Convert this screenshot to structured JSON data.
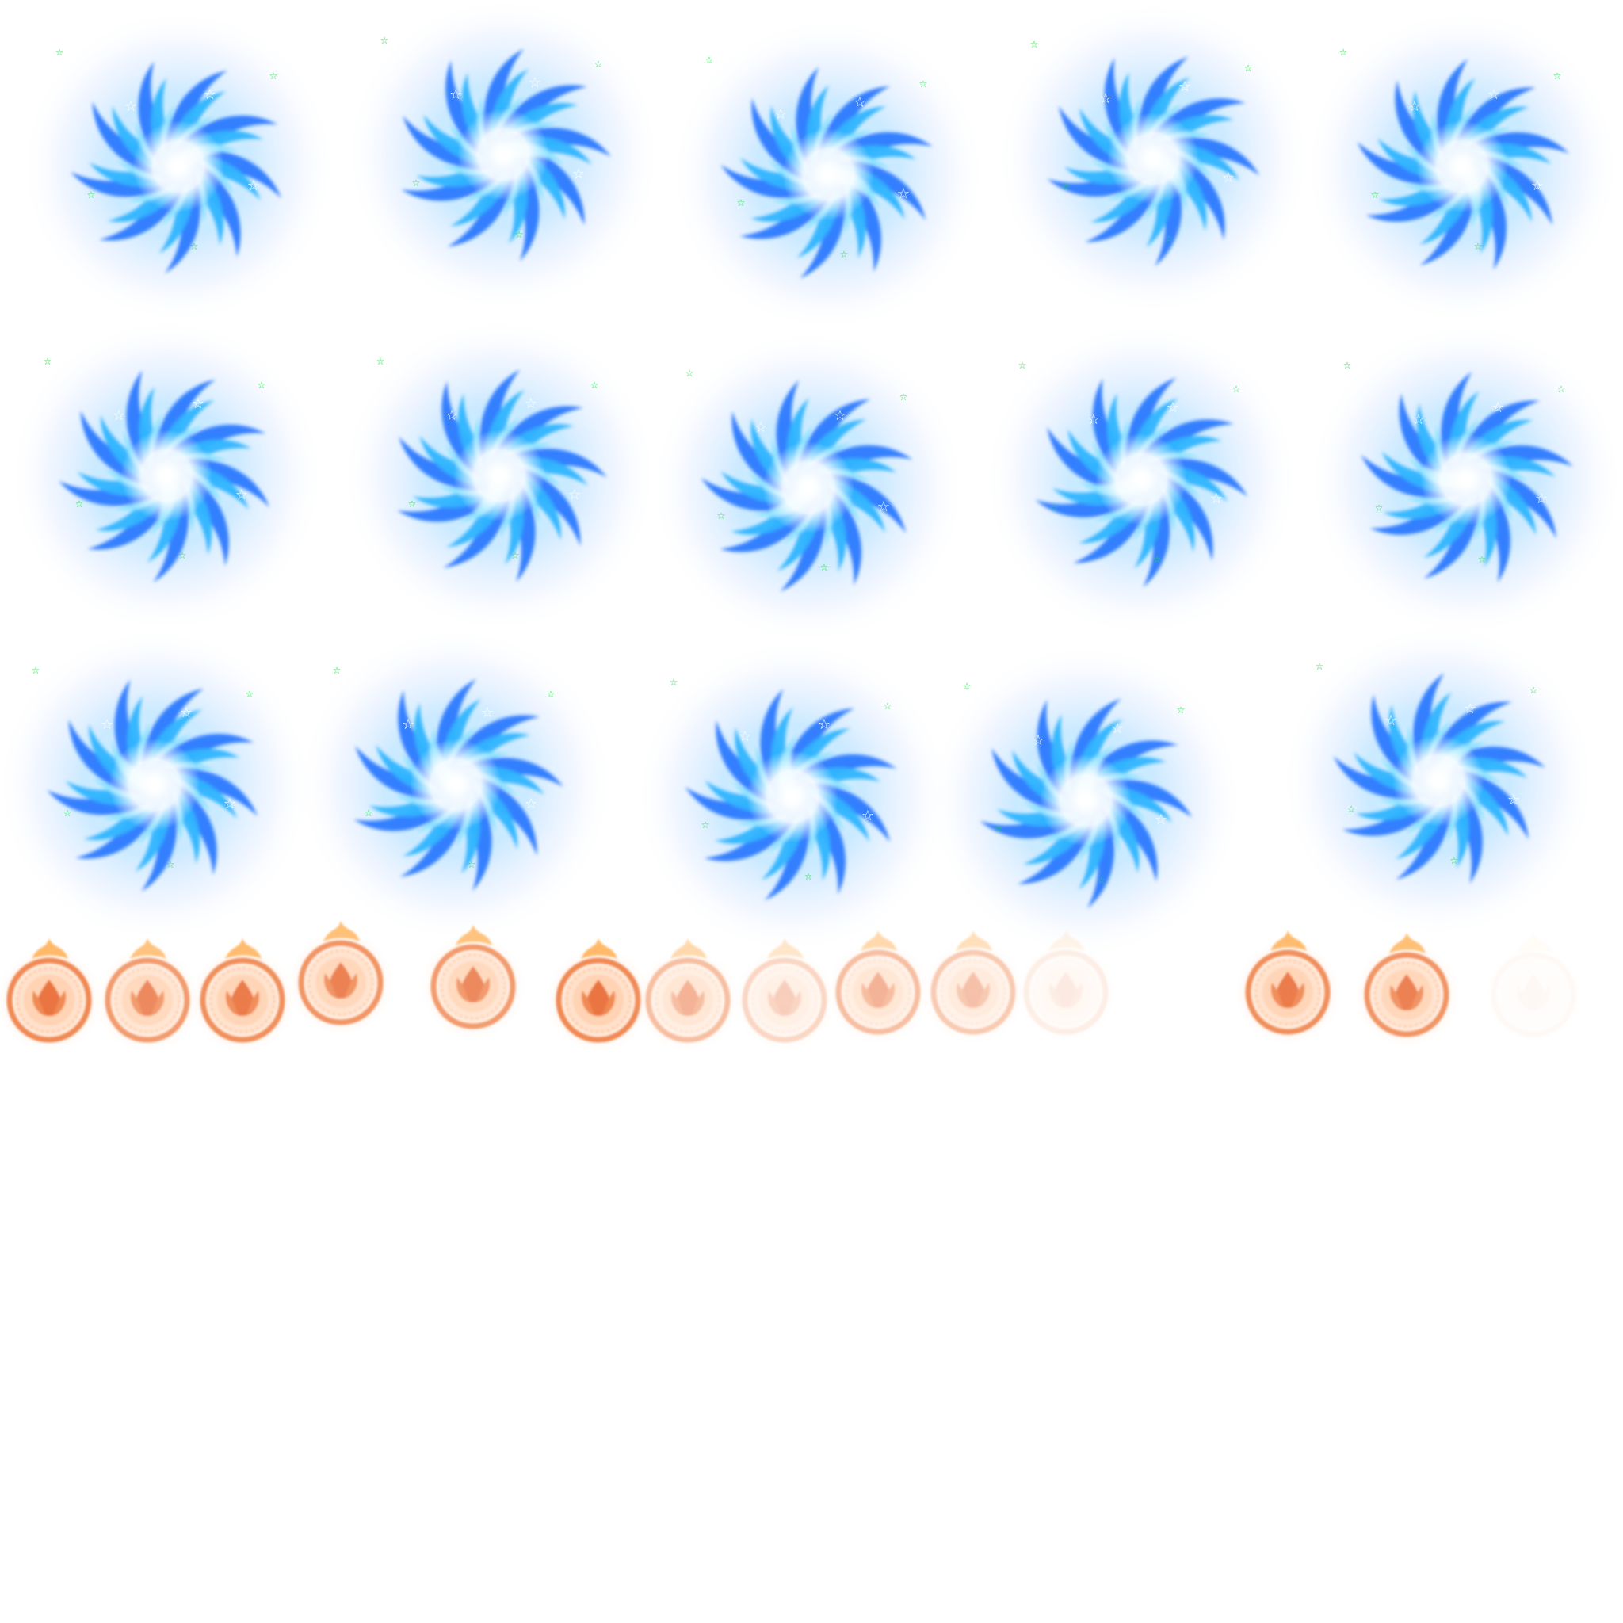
{
  "sprite_sheet": {
    "background": "#ffffff",
    "vortex": {
      "icon": "blue-swirl-vortex-icon",
      "colors": {
        "core": "#ffffff",
        "inner": "#8fe4ff",
        "mid": "#2fb4ff",
        "outer": "#1a6cff",
        "halo": "#7aa8ff",
        "star": "#22dd44"
      },
      "frames": [
        {
          "rot": 0,
          "opacity": 1
        },
        {
          "rot": 24,
          "opacity": 1
        },
        {
          "rot": 48,
          "opacity": 1
        },
        {
          "rot": 72,
          "opacity": 1
        },
        {
          "rot": 96,
          "opacity": 1
        },
        {
          "rot": 120,
          "opacity": 1
        },
        {
          "rot": 144,
          "opacity": 1
        },
        {
          "rot": 168,
          "opacity": 1
        },
        {
          "rot": 192,
          "opacity": 1
        },
        {
          "rot": 216,
          "opacity": 1
        },
        {
          "rot": 240,
          "opacity": 1
        },
        {
          "rot": 264,
          "opacity": 1
        },
        {
          "rot": 288,
          "opacity": 1
        },
        {
          "rot": 312,
          "opacity": 1
        },
        {
          "rot": 336,
          "opacity": 1
        }
      ]
    },
    "seal": {
      "icon": "orange-flame-seal-icon",
      "colors": {
        "ring": "#f08a55",
        "glow": "#ffc9a3",
        "core": "#e86a35",
        "flame": "#ffb15a"
      },
      "frames": [
        {
          "opacity": 1
        },
        {
          "opacity": 0.85
        },
        {
          "opacity": 0.95
        },
        {
          "opacity": 0.9
        },
        {
          "opacity": 0.85
        },
        {
          "opacity": 1
        },
        {
          "opacity": 0.55
        },
        {
          "opacity": 0.35
        },
        {
          "opacity": 0.55
        },
        {
          "opacity": 0.45
        },
        {
          "opacity": 0.15
        },
        {
          "opacity": 0
        },
        {
          "opacity": 0.95
        },
        {
          "opacity": 0.9
        },
        {
          "opacity": 0.05
        }
      ]
    }
  }
}
